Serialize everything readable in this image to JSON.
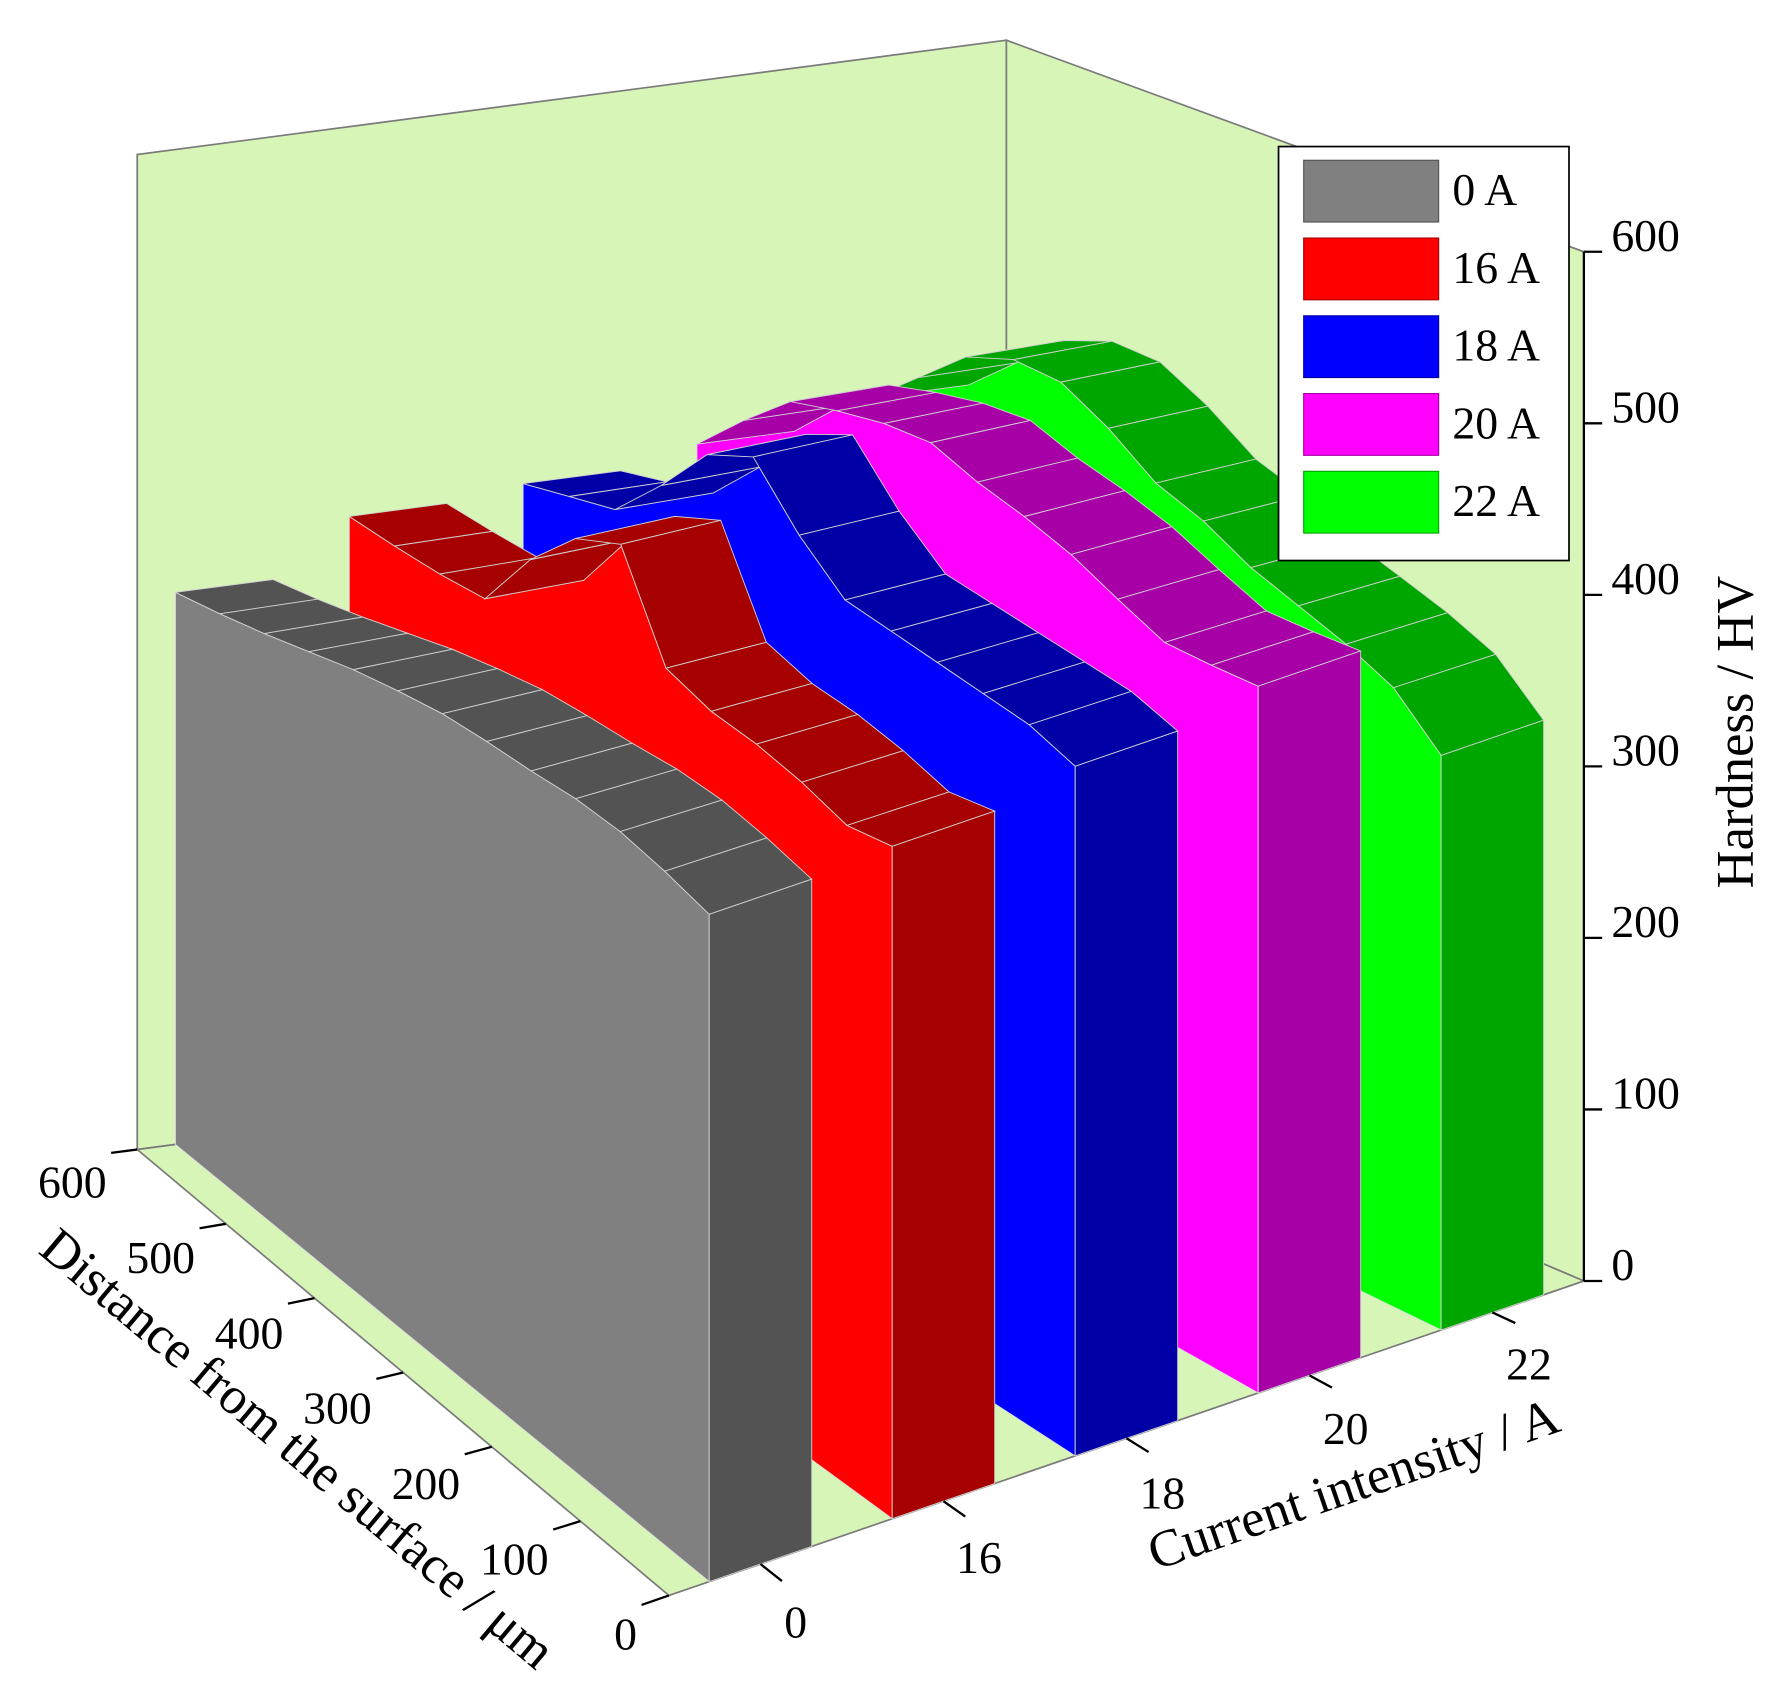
{
  "chart_data": {
    "type": "wall3d",
    "x": [
      0,
      50,
      100,
      150,
      200,
      250,
      300,
      350,
      400,
      450,
      500,
      550,
      600
    ],
    "categories": [
      "0",
      "16",
      "18",
      "20",
      "22"
    ],
    "series": [
      {
        "name": "0 A",
        "color": "#808080",
        "values": [
          389,
          394,
          397,
          396,
          392,
          389,
          385,
          378,
          370,
          360,
          350,
          341,
          333
        ]
      },
      {
        "name": "16 A",
        "color": "#ff0000",
        "values": [
          392,
          386,
          393,
          397,
          398,
          405,
          460,
          445,
          414,
          372,
          368,
          366,
          365
        ]
      },
      {
        "name": "18 A",
        "color": "#0000ff",
        "values": [
          402,
          410,
          412,
          414,
          416,
          418,
          440,
          470,
          455,
          420,
          389,
          380,
          371
        ]
      },
      {
        "name": "20 A",
        "color": "#ff00ff",
        "values": [
          412,
          410,
          409,
          420,
          432,
          440,
          446,
          455,
          452,
          445,
          436,
          410,
          381
        ]
      },
      {
        "name": "22 A",
        "color": "#00ff00",
        "values": [
          335,
          362,
          375,
          385,
          395,
          410,
          420,
          440,
          455,
          456,
          445,
          420,
          395
        ]
      }
    ],
    "xlabel": "Distance from the surface / μm",
    "ylabel": "Current intensity / A",
    "zlabel": "Hardness / HV",
    "xlim": [
      0,
      600
    ],
    "xticks": [
      0,
      100,
      200,
      300,
      400,
      500,
      600
    ],
    "zlim": [
      0,
      600
    ],
    "zticks": [
      0,
      100,
      200,
      300,
      400,
      500,
      600
    ],
    "pane_color": "#d7f5b7",
    "legend": "upper right"
  }
}
